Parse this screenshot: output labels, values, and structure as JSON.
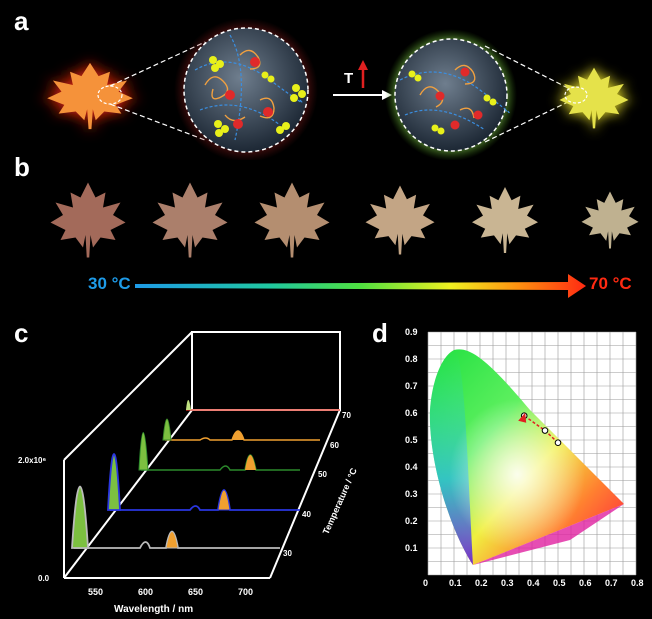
{
  "panels": {
    "a": "a",
    "b": "b",
    "c": "c",
    "d": "d"
  },
  "panel_a": {
    "arrow_label": "T",
    "leaf_start_color": "#f5923a",
    "leaf_end_color": "#e5e24a",
    "glow_start_color": "#c0392b",
    "glow_end_color": "#b8f28a"
  },
  "panel_b": {
    "start_label": "30 °C",
    "end_label": "70 °C",
    "start_color": "#1e9be8",
    "end_color": "#ff2a12",
    "leaf_count": 6
  },
  "chart_data": [
    {
      "type": "line",
      "panel": "c",
      "xlabel": "Wavelength / nm",
      "zlabel": "Temperature / °C",
      "x_ticks": [
        "550",
        "600",
        "650",
        "700"
      ],
      "z_ticks": [
        "30",
        "40",
        "50",
        "60",
        "70"
      ],
      "y_ticks": [
        "0.0",
        "2.0x10⁶"
      ],
      "series": [
        {
          "temperature": "30",
          "line_color": "#bbbbbb"
        },
        {
          "temperature": "40",
          "line_color": "#2a36e0"
        },
        {
          "temperature": "50",
          "line_color": "#2c8a2c"
        },
        {
          "temperature": "60",
          "line_color": "#f0a030"
        },
        {
          "temperature": "70",
          "line_color": "#e03020"
        }
      ]
    },
    {
      "type": "scatter",
      "panel": "d",
      "x_ticks": [
        "0",
        "0.1",
        "0.2",
        "0.3",
        "0.4",
        "0.5",
        "0.6",
        "0.7",
        "0.8"
      ],
      "y_ticks": [
        "0.1",
        "0.2",
        "0.3",
        "0.4",
        "0.5",
        "0.6",
        "0.7",
        "0.8",
        "0.9"
      ],
      "xlim": [
        0,
        0.8
      ],
      "ylim": [
        0,
        0.9
      ],
      "points": [
        {
          "x": 0.5,
          "y": 0.49
        },
        {
          "x": 0.45,
          "y": 0.535
        },
        {
          "x": 0.37,
          "y": 0.59
        }
      ]
    }
  ]
}
